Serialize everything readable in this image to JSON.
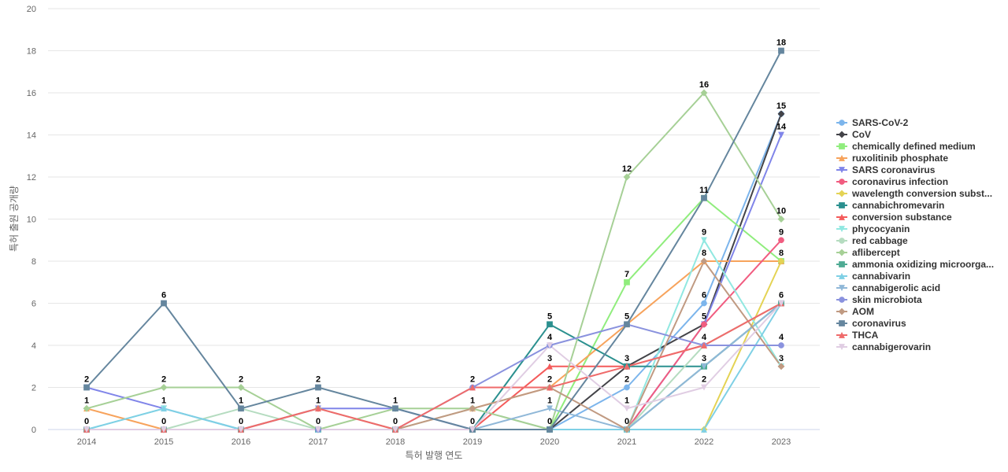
{
  "chart_data": {
    "type": "line",
    "xlabel": "특허 발행 연도",
    "ylabel": "특허 출원 공개량",
    "ylim": [
      0,
      20
    ],
    "yticks": [
      0,
      2,
      4,
      6,
      8,
      10,
      12,
      14,
      16,
      18,
      20
    ],
    "x": [
      "2014",
      "2015",
      "2016",
      "2017",
      "2018",
      "2019",
      "2020",
      "2021",
      "2022",
      "2023"
    ],
    "grid": true,
    "legend": "right",
    "series": [
      {
        "name": "SARS-CoV-2",
        "color": "#7cb5ec",
        "marker": "circle",
        "values": [
          0,
          0,
          0,
          0,
          0,
          0,
          0,
          2,
          6,
          15
        ]
      },
      {
        "name": "CoV",
        "color": "#434348",
        "marker": "diamond",
        "values": [
          0,
          0,
          0,
          0,
          0,
          0,
          0,
          3,
          5,
          15
        ]
      },
      {
        "name": "chemically defined medium",
        "color": "#90ed7d",
        "marker": "square",
        "values": [
          0,
          0,
          0,
          0,
          0,
          0,
          0,
          7,
          11,
          8
        ]
      },
      {
        "name": "ruxolitinib phosphate",
        "color": "#f7a35c",
        "marker": "triangle",
        "values": [
          1,
          0,
          0,
          0,
          0,
          1,
          2,
          5,
          8,
          8
        ]
      },
      {
        "name": "SARS coronavirus",
        "color": "#8085e9",
        "marker": "triangle-down",
        "values": [
          2,
          1,
          0,
          1,
          1,
          0,
          0,
          0,
          5,
          14
        ]
      },
      {
        "name": "coronavirus infection",
        "color": "#f15c80",
        "marker": "circle",
        "values": [
          0,
          0,
          0,
          0,
          0,
          0,
          0,
          0,
          5,
          9
        ]
      },
      {
        "name": "wavelength conversion subst...",
        "color": "#e4d354",
        "marker": "diamond",
        "values": [
          0,
          0,
          0,
          0,
          0,
          0,
          0,
          0,
          0,
          8
        ]
      },
      {
        "name": "cannabichromevarin",
        "color": "#2b908f",
        "marker": "square",
        "values": [
          0,
          0,
          0,
          0,
          0,
          0,
          5,
          3,
          3,
          6
        ]
      },
      {
        "name": "conversion substance",
        "color": "#f45b5b",
        "marker": "triangle",
        "values": [
          0,
          0,
          0,
          0,
          0,
          0,
          3,
          3,
          4,
          6
        ]
      },
      {
        "name": "phycocyanin",
        "color": "#91e8e1",
        "marker": "triangle-down",
        "values": [
          0,
          1,
          0,
          0,
          0,
          0,
          0,
          0,
          9,
          3
        ]
      },
      {
        "name": "red cabbage",
        "color": "#b5dcc0",
        "marker": "circle",
        "values": [
          0,
          0,
          1,
          0,
          0,
          1,
          0,
          0,
          4,
          6
        ]
      },
      {
        "name": "aflibercept",
        "color": "#a6d096",
        "marker": "diamond",
        "values": [
          1,
          2,
          2,
          0,
          1,
          1,
          0,
          12,
          16,
          10
        ]
      },
      {
        "name": "ammonia oxidizing microorga...",
        "color": "#4fab94",
        "marker": "square",
        "values": [
          0,
          0,
          0,
          0,
          0,
          0,
          0,
          0,
          3,
          6
        ]
      },
      {
        "name": "cannabivarin",
        "color": "#7fd0e5",
        "marker": "triangle",
        "values": [
          0,
          1,
          0,
          0,
          0,
          0,
          0,
          0,
          0,
          6
        ]
      },
      {
        "name": "cannabigerolic acid",
        "color": "#90b8d8",
        "marker": "triangle-down",
        "values": [
          0,
          0,
          0,
          0,
          0,
          0,
          1,
          0,
          3,
          6
        ]
      },
      {
        "name": "skin microbiota",
        "color": "#8a92de",
        "marker": "circle",
        "values": [
          0,
          0,
          0,
          0,
          0,
          2,
          4,
          5,
          4,
          4
        ]
      },
      {
        "name": "AOM",
        "color": "#c09a82",
        "marker": "diamond",
        "values": [
          0,
          0,
          0,
          1,
          0,
          1,
          2,
          0,
          8,
          3
        ]
      },
      {
        "name": "coronavirus",
        "color": "#65869e",
        "marker": "square",
        "values": [
          2,
          6,
          1,
          2,
          1,
          0,
          0,
          5,
          11,
          18
        ]
      },
      {
        "name": "THCA",
        "color": "#ef6b6b",
        "marker": "triangle",
        "values": [
          0,
          0,
          0,
          1,
          0,
          2,
          2,
          3,
          4,
          6
        ]
      },
      {
        "name": "cannabigerovarin",
        "color": "#e0cde3",
        "marker": "triangle-down",
        "values": [
          0,
          0,
          0,
          0,
          0,
          0,
          4,
          1,
          2,
          6
        ]
      }
    ],
    "data_labels": [
      {
        "x": "2014",
        "label": "2",
        "y": 2
      },
      {
        "x": "2014",
        "label": "1",
        "y": 1
      },
      {
        "x": "2014",
        "label": "0",
        "y": 0
      },
      {
        "x": "2015",
        "label": "6",
        "y": 6
      },
      {
        "x": "2015",
        "label": "2",
        "y": 2
      },
      {
        "x": "2015",
        "label": "1",
        "y": 1
      },
      {
        "x": "2015",
        "label": "0",
        "y": 0
      },
      {
        "x": "2016",
        "label": "2",
        "y": 2
      },
      {
        "x": "2016",
        "label": "1",
        "y": 1
      },
      {
        "x": "2016",
        "label": "0",
        "y": 0
      },
      {
        "x": "2017",
        "label": "2",
        "y": 2
      },
      {
        "x": "2017",
        "label": "1",
        "y": 1
      },
      {
        "x": "2017",
        "label": "0",
        "y": 0
      },
      {
        "x": "2018",
        "label": "1",
        "y": 1
      },
      {
        "x": "2018",
        "label": "0",
        "y": 0
      },
      {
        "x": "2019",
        "label": "2",
        "y": 2
      },
      {
        "x": "2019",
        "label": "1",
        "y": 1
      },
      {
        "x": "2019",
        "label": "0",
        "y": 0
      },
      {
        "x": "2020",
        "label": "5",
        "y": 5
      },
      {
        "x": "2020",
        "label": "4",
        "y": 4
      },
      {
        "x": "2020",
        "label": "3",
        "y": 3
      },
      {
        "x": "2020",
        "label": "2",
        "y": 2
      },
      {
        "x": "2020",
        "label": "1",
        "y": 1
      },
      {
        "x": "2020",
        "label": "0",
        "y": 0
      },
      {
        "x": "2021",
        "label": "12",
        "y": 12
      },
      {
        "x": "2021",
        "label": "7",
        "y": 7
      },
      {
        "x": "2021",
        "label": "5",
        "y": 5
      },
      {
        "x": "2021",
        "label": "3",
        "y": 3
      },
      {
        "x": "2021",
        "label": "2",
        "y": 2
      },
      {
        "x": "2021",
        "label": "1",
        "y": 1
      },
      {
        "x": "2021",
        "label": "0",
        "y": 0
      },
      {
        "x": "2022",
        "label": "16",
        "y": 16
      },
      {
        "x": "2022",
        "label": "11",
        "y": 11
      },
      {
        "x": "2022",
        "label": "9",
        "y": 9
      },
      {
        "x": "2022",
        "label": "8",
        "y": 8
      },
      {
        "x": "2022",
        "label": "6",
        "y": 6
      },
      {
        "x": "2022",
        "label": "5",
        "y": 5
      },
      {
        "x": "2022",
        "label": "4",
        "y": 4
      },
      {
        "x": "2022",
        "label": "3",
        "y": 3
      },
      {
        "x": "2022",
        "label": "2",
        "y": 2
      },
      {
        "x": "2023",
        "label": "18",
        "y": 18
      },
      {
        "x": "2023",
        "label": "15",
        "y": 15
      },
      {
        "x": "2023",
        "label": "14",
        "y": 14
      },
      {
        "x": "2023",
        "label": "10",
        "y": 10
      },
      {
        "x": "2023",
        "label": "9",
        "y": 9
      },
      {
        "x": "2023",
        "label": "8",
        "y": 8
      },
      {
        "x": "2023",
        "label": "6",
        "y": 6
      },
      {
        "x": "2023",
        "label": "4",
        "y": 4
      },
      {
        "x": "2023",
        "label": "3",
        "y": 3
      }
    ]
  }
}
